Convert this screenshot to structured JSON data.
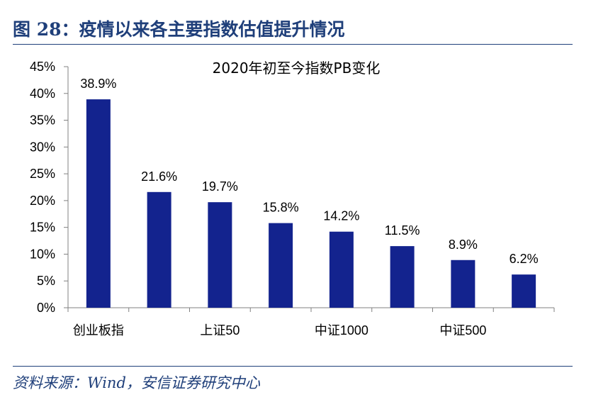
{
  "header": {
    "title": "图 28：疫情以来各主要指数估值提升情况"
  },
  "source": {
    "text": "资料来源：Wind，安信证券研究中心"
  },
  "colors": {
    "bar": "#13238E",
    "header": "#1F3F7A"
  },
  "chart_data": {
    "type": "bar",
    "title": "2020年初至今指数PB变化",
    "categories": [
      "创业板指",
      "",
      "上证50",
      "",
      "中证1000",
      "",
      "中证500",
      ""
    ],
    "values": [
      38.9,
      21.6,
      19.7,
      15.8,
      14.2,
      11.5,
      8.9,
      6.2
    ],
    "data_labels": [
      "38.9%",
      "21.6%",
      "19.7%",
      "15.8%",
      "14.2%",
      "11.5%",
      "8.9%",
      "6.2%"
    ],
    "y_ticks": [
      "0%",
      "5%",
      "10%",
      "15%",
      "20%",
      "25%",
      "30%",
      "35%",
      "40%",
      "45%"
    ],
    "ylim": [
      0,
      45
    ],
    "grid": false,
    "legend": "none"
  }
}
